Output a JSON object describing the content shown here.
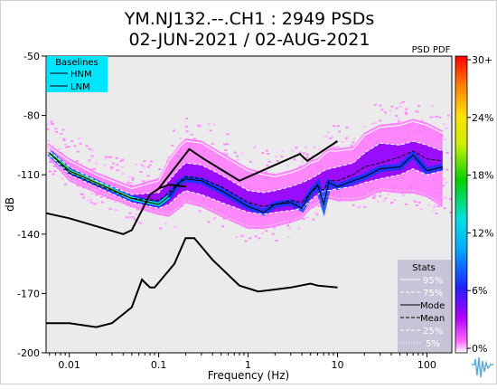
{
  "chart_data": {
    "type": "heatmap",
    "title_line1": "YM.NJ132.--.CH1 : 2949 PSDs",
    "title_line2": "02-JUN-2021 / 02-AUG-2021",
    "xlabel": "Frequency (Hz)",
    "ylabel": "dB",
    "x_scale": "log",
    "xlim": [
      0.0055,
      190
    ],
    "ylim": [
      -200,
      -50
    ],
    "x_ticks": [
      {
        "value": 0.01,
        "label": "0.01"
      },
      {
        "value": 0.1,
        "label": "0.1"
      },
      {
        "value": 1,
        "label": "1"
      },
      {
        "value": 10,
        "label": "10"
      },
      {
        "value": 100,
        "label": "100"
      }
    ],
    "y_ticks": [
      {
        "value": -50,
        "label": "-50"
      },
      {
        "value": -80,
        "label": "-80"
      },
      {
        "value": -110,
        "label": "-110"
      },
      {
        "value": -140,
        "label": "-140"
      },
      {
        "value": -170,
        "label": "-170"
      },
      {
        "value": -200,
        "label": "-200"
      }
    ],
    "colorbar": {
      "label": "PSD PDF",
      "ticks": [
        "30+",
        "24%",
        "18%",
        "12%",
        "6%",
        "0%"
      ]
    },
    "baselines_legend": {
      "title": "Baselines",
      "items": [
        "HNM",
        "LNM"
      ]
    },
    "stats_legend": {
      "title": "Stats",
      "items": [
        "95%",
        "75%",
        "Mode",
        "Mean",
        "25%",
        "5%"
      ]
    },
    "hnm": {
      "x": [
        0.1,
        0.22,
        0.32,
        0.8,
        3.8,
        4.6,
        6.3,
        7.9,
        10
      ],
      "y": [
        -117,
        -97,
        -102,
        -113,
        -99.5,
        -103,
        -99,
        -96,
        -93
      ]
    },
    "lnm": {
      "x": [
        0.005,
        0.01,
        0.02,
        0.03,
        0.05,
        0.065,
        0.08,
        0.09,
        0.15,
        0.2,
        0.25,
        0.4,
        0.8,
        1.3,
        2,
        3,
        5,
        6,
        10
      ],
      "y": [
        -185,
        -185,
        -187,
        -185,
        -177,
        -163,
        -167,
        -167,
        -155,
        -142,
        -142,
        -153,
        -166,
        -169,
        -168,
        -167,
        -165,
        -166,
        -167
      ]
    },
    "early_reference_line": {
      "x": [
        0.005,
        0.01,
        0.02,
        0.04,
        0.05,
        0.08,
        0.1,
        0.13,
        0.2
      ],
      "y": [
        -129,
        -132,
        -136,
        -140,
        -138,
        -120,
        -117,
        -115,
        -116
      ]
    },
    "stats": {
      "x": [
        0.006,
        0.01,
        0.02,
        0.05,
        0.1,
        0.13,
        0.17,
        0.2,
        0.3,
        0.5,
        1,
        1.5,
        2,
        3,
        4,
        5,
        6,
        7,
        8,
        10,
        15,
        20,
        30,
        50,
        70,
        100,
        150
      ],
      "p95": [
        -96,
        -103,
        -110,
        -117,
        -113,
        -103,
        -96,
        -93,
        -94,
        -100,
        -108,
        -110,
        -111,
        -109,
        -107,
        -104,
        -103,
        -100,
        -98,
        -98,
        -97,
        -90,
        -86,
        -85,
        -83,
        -85,
        -89
      ],
      "p75": [
        -98,
        -106,
        -113,
        -120,
        -119,
        -113,
        -107,
        -104,
        -105,
        -110,
        -118,
        -119,
        -118,
        -116,
        -114,
        -112,
        -110,
        -108,
        -107,
        -106,
        -104,
        -99,
        -94,
        -95,
        -93,
        -95,
        -98
      ],
      "mode": [
        -99,
        -108,
        -114,
        -122,
        -125,
        -121,
        -114,
        -112,
        -113,
        -118,
        -126,
        -129,
        -125,
        -124,
        -127,
        -119,
        -115,
        -125,
        -114,
        -116,
        -113,
        -111,
        -107,
        -106,
        -100,
        -108,
        -106
      ],
      "mean": [
        -99,
        -109,
        -115,
        -122,
        -123,
        -119,
        -114,
        -111,
        -112,
        -116,
        -124,
        -126,
        -125,
        -123,
        -124,
        -119,
        -116,
        -118,
        -113,
        -113,
        -110,
        -106,
        -104,
        -101,
        -98,
        -102,
        -103
      ],
      "p25": [
        -100,
        -110,
        -116,
        -124,
        -127,
        -125,
        -120,
        -118,
        -120,
        -124,
        -129,
        -130,
        -129,
        -128,
        -127,
        -123,
        -120,
        -118,
        -118,
        -117,
        -116,
        -114,
        -112,
        -110,
        -107,
        -110,
        -108
      ],
      "p5": [
        -101,
        -112,
        -118,
        -125,
        -129,
        -130,
        -126,
        -123,
        -125,
        -130,
        -136,
        -136,
        -135,
        -133,
        -131,
        -126,
        -124,
        -121,
        -121,
        -122,
        -122,
        -121,
        -117,
        -118,
        -118,
        -120,
        -125
      ]
    },
    "colors": {
      "baseline_box": "#00e5ff",
      "stats_box": "#c8c3d6",
      "pdf_low": "#ff44ff",
      "pdf_mid": "#8a2be2",
      "pdf_high": "#0040ff",
      "plot_bg": "#ebebeb"
    }
  },
  "logo": {
    "name": "waveform-logo-icon"
  }
}
